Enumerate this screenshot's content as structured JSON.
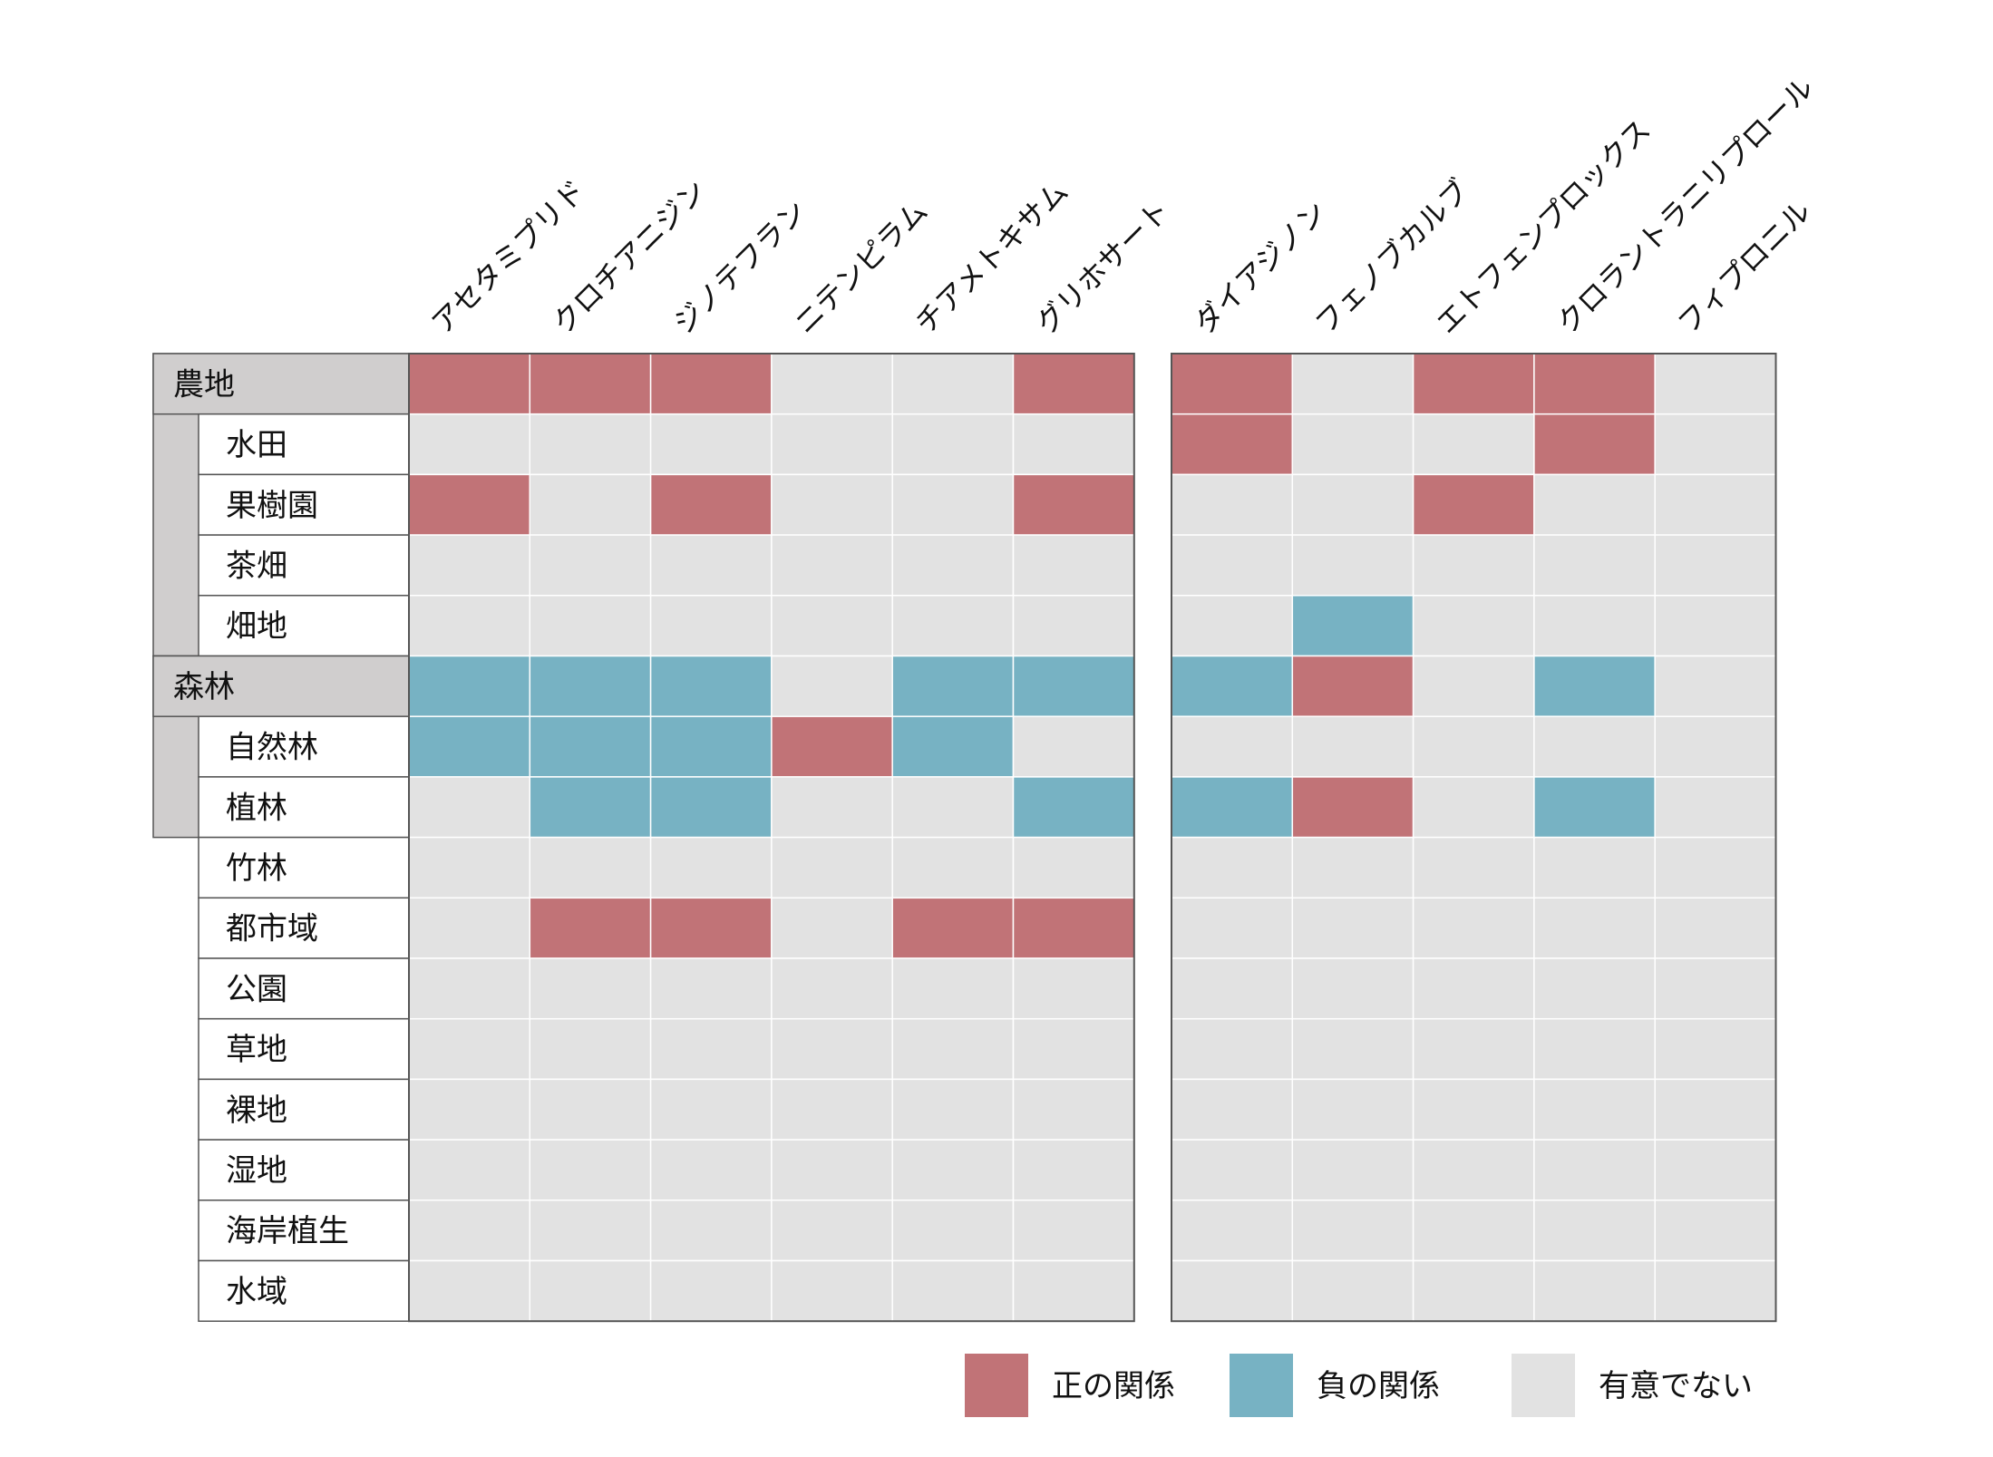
{
  "chart_data": {
    "type": "heatmap",
    "title": "",
    "value_encoding": {
      "1": "正の関係",
      "-1": "負の関係",
      "0": "有意でない"
    },
    "colors": {
      "positive": "#c17377",
      "negative": "#77b2c3",
      "none": "#e2e2e2",
      "border": "#555555",
      "group_fill": "#d0cece"
    },
    "rows": [
      {
        "label": "農地",
        "group": true
      },
      {
        "label": "水田",
        "group": false
      },
      {
        "label": "果樹園",
        "group": false
      },
      {
        "label": "茶畑",
        "group": false
      },
      {
        "label": "畑地",
        "group": false
      },
      {
        "label": "森林",
        "group": true
      },
      {
        "label": "自然林",
        "group": false
      },
      {
        "label": "植林",
        "group": false
      },
      {
        "label": "竹林",
        "group": false
      },
      {
        "label": "都市域",
        "group": false
      },
      {
        "label": "公園",
        "group": false
      },
      {
        "label": "草地",
        "group": false
      },
      {
        "label": "裸地",
        "group": false
      },
      {
        "label": "湿地",
        "group": false
      },
      {
        "label": "海岸植生",
        "group": false
      },
      {
        "label": "水域",
        "group": false
      }
    ],
    "panels": [
      {
        "columns": [
          "アセタミプリド",
          "クロチアニジン",
          "ジノテフラン",
          "ニテンピラム",
          "チアメトキサム",
          "グリホサート"
        ],
        "values": [
          [
            1,
            1,
            1,
            0,
            0,
            1
          ],
          [
            0,
            0,
            0,
            0,
            0,
            0
          ],
          [
            1,
            0,
            1,
            0,
            0,
            1
          ],
          [
            0,
            0,
            0,
            0,
            0,
            0
          ],
          [
            0,
            0,
            0,
            0,
            0,
            0
          ],
          [
            -1,
            -1,
            -1,
            0,
            -1,
            -1
          ],
          [
            -1,
            -1,
            -1,
            1,
            -1,
            0
          ],
          [
            0,
            -1,
            -1,
            0,
            0,
            -1
          ],
          [
            0,
            0,
            0,
            0,
            0,
            0
          ],
          [
            0,
            1,
            1,
            0,
            1,
            1
          ],
          [
            0,
            0,
            0,
            0,
            0,
            0
          ],
          [
            0,
            0,
            0,
            0,
            0,
            0
          ],
          [
            0,
            0,
            0,
            0,
            0,
            0
          ],
          [
            0,
            0,
            0,
            0,
            0,
            0
          ],
          [
            0,
            0,
            0,
            0,
            0,
            0
          ],
          [
            0,
            0,
            0,
            0,
            0,
            0
          ]
        ]
      },
      {
        "columns": [
          "ダイアジノン",
          "フェノブカルブ",
          "エトフェンプロックス",
          "クロラントラニリプロール",
          "フィプロニル"
        ],
        "values": [
          [
            1,
            0,
            1,
            1,
            0
          ],
          [
            1,
            0,
            0,
            1,
            0
          ],
          [
            0,
            0,
            1,
            0,
            0
          ],
          [
            0,
            0,
            0,
            0,
            0
          ],
          [
            0,
            -1,
            0,
            0,
            0
          ],
          [
            -1,
            1,
            0,
            -1,
            0
          ],
          [
            0,
            0,
            0,
            0,
            0
          ],
          [
            -1,
            1,
            0,
            -1,
            0
          ],
          [
            0,
            0,
            0,
            0,
            0
          ],
          [
            0,
            0,
            0,
            0,
            0
          ],
          [
            0,
            0,
            0,
            0,
            0
          ],
          [
            0,
            0,
            0,
            0,
            0
          ],
          [
            0,
            0,
            0,
            0,
            0
          ],
          [
            0,
            0,
            0,
            0,
            0
          ],
          [
            0,
            0,
            0,
            0,
            0
          ],
          [
            0,
            0,
            0,
            0,
            0
          ]
        ]
      }
    ],
    "legend": [
      {
        "value": 1,
        "label": "正の関係"
      },
      {
        "value": -1,
        "label": "負の関係"
      },
      {
        "value": 0,
        "label": "有意でない"
      }
    ],
    "legend_position": "bottom-right"
  }
}
